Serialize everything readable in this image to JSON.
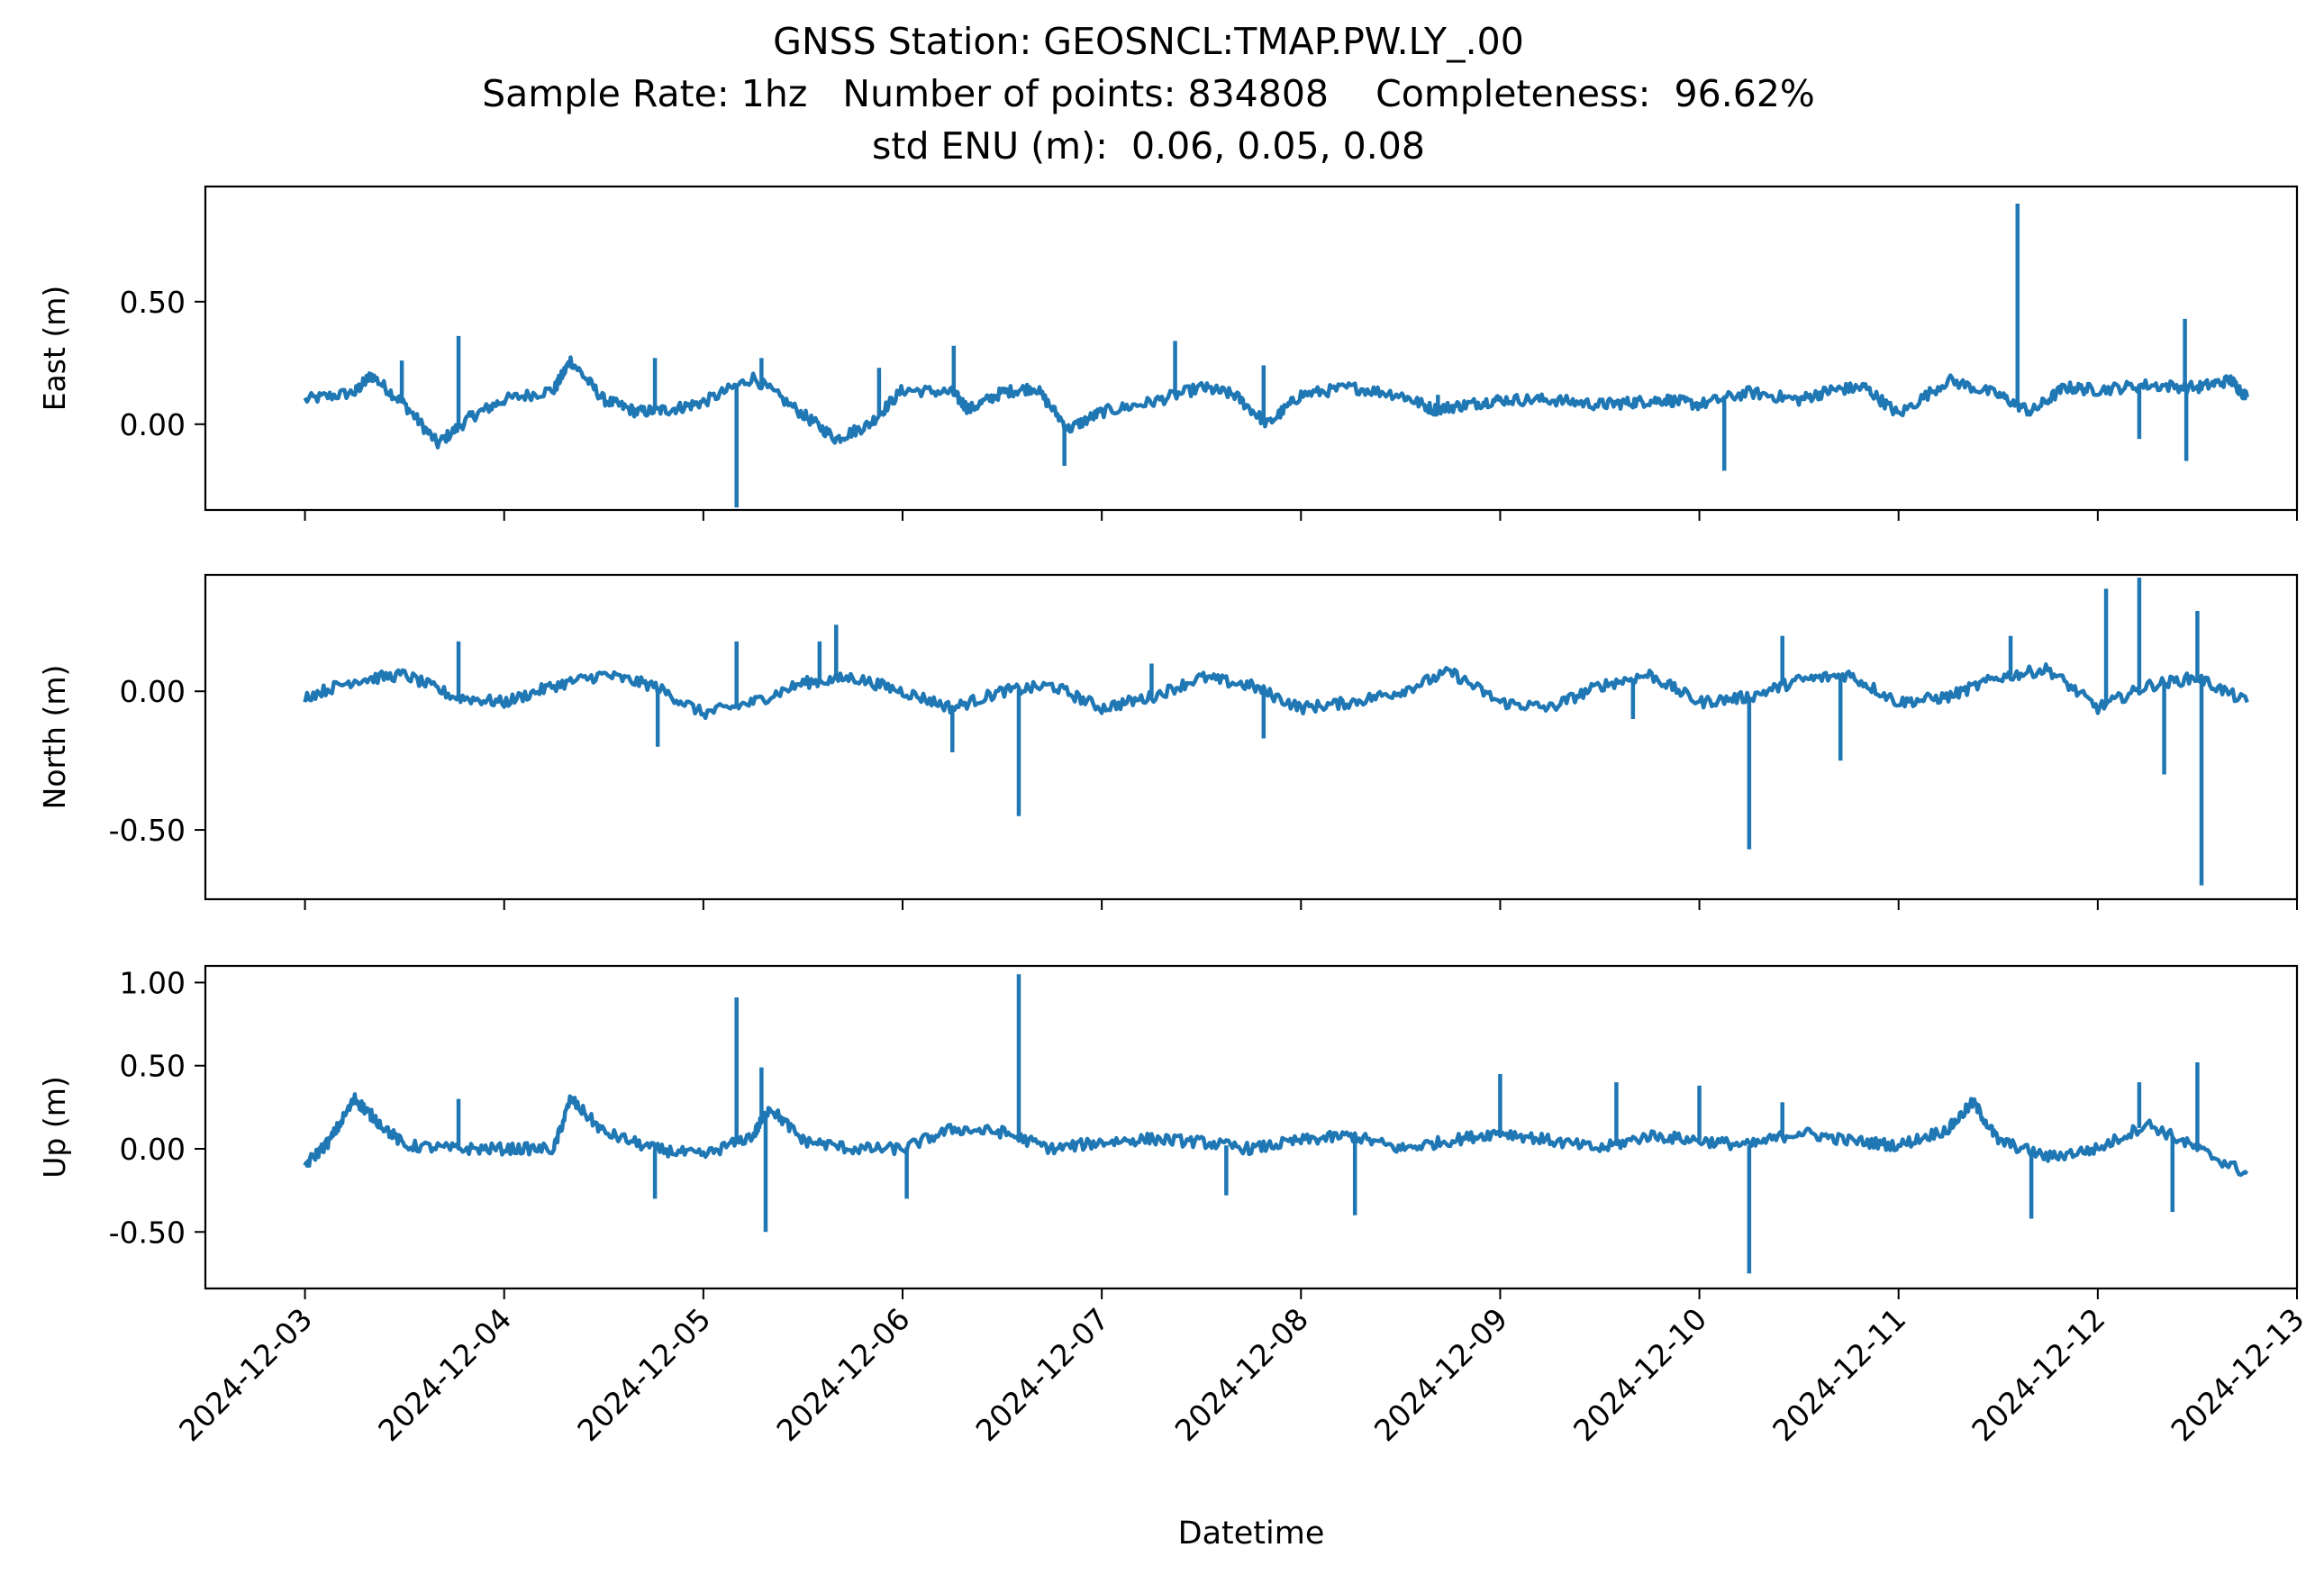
{
  "figure": {
    "title_lines": [
      "GNSS Station: GEOSNCL:TMAP.PW.LY_.00",
      "Sample Rate: 1hz   Number of points: 834808    Completeness:  96.62%",
      "std ENU (m):  0.06, 0.05, 0.08"
    ]
  },
  "chart_data": {
    "type": "line",
    "xlabel": "Datetime",
    "x_ticks": [
      "2024-12-03",
      "2024-12-04",
      "2024-12-05",
      "2024-12-06",
      "2024-12-07",
      "2024-12-08",
      "2024-12-09",
      "2024-12-10",
      "2024-12-11",
      "2024-12-12",
      "2024-12-13"
    ],
    "xlim": [
      "2024-12-02T12:00",
      "2024-12-13T00:00"
    ],
    "line_color": "#1f77b4",
    "grid": false,
    "legend": "none",
    "panels": [
      {
        "ylabel": "East (m)",
        "ylim": [
          -0.35,
          0.97
        ],
        "yticks": [
          0.0,
          0.5
        ],
        "ytick_labels": [
          "0.00",
          "0.50"
        ],
        "x": [
          "2024-12-03T00:00",
          "2024-12-03T06:00",
          "2024-12-03T08:00",
          "2024-12-03T12:00",
          "2024-12-03T16:00",
          "2024-12-03T20:00",
          "2024-12-04T00:00",
          "2024-12-04T06:00",
          "2024-12-04T08:00",
          "2024-12-04T12:00",
          "2024-12-04T16:00",
          "2024-12-04T20:00",
          "2024-12-05T00:00",
          "2024-12-05T06:00",
          "2024-12-05T12:00",
          "2024-12-05T16:00",
          "2024-12-05T20:00",
          "2024-12-06T00:00",
          "2024-12-06T06:00",
          "2024-12-06T08:00",
          "2024-12-06T12:00",
          "2024-12-06T16:00",
          "2024-12-06T20:00",
          "2024-12-07T00:00",
          "2024-12-07T06:00",
          "2024-12-07T12:00",
          "2024-12-07T16:00",
          "2024-12-07T20:00",
          "2024-12-08T00:00",
          "2024-12-08T06:00",
          "2024-12-08T12:00",
          "2024-12-08T16:00",
          "2024-12-08T20:00",
          "2024-12-09T00:00",
          "2024-12-09T06:00",
          "2024-12-09T12:00",
          "2024-12-09T16:00",
          "2024-12-09T20:00",
          "2024-12-10T00:00",
          "2024-12-10T06:00",
          "2024-12-10T12:00",
          "2024-12-10T16:00",
          "2024-12-10T20:00",
          "2024-12-11T00:00",
          "2024-12-11T06:00",
          "2024-12-11T12:00",
          "2024-12-11T16:00",
          "2024-12-11T20:00",
          "2024-12-12T00:00",
          "2024-12-12T06:00",
          "2024-12-12T12:00",
          "2024-12-12T16:00",
          "2024-12-12T18:00"
        ],
        "y": [
          0.1,
          0.13,
          0.2,
          0.08,
          -0.08,
          0.03,
          0.1,
          0.14,
          0.26,
          0.1,
          0.05,
          0.06,
          0.09,
          0.19,
          0.04,
          -0.06,
          0.0,
          0.14,
          0.13,
          0.06,
          0.13,
          0.15,
          -0.02,
          0.05,
          0.09,
          0.15,
          0.12,
          0.0,
          0.12,
          0.15,
          0.12,
          0.06,
          0.08,
          0.1,
          0.1,
          0.08,
          0.09,
          0.1,
          0.08,
          0.13,
          0.1,
          0.14,
          0.15,
          0.04,
          0.18,
          0.12,
          0.05,
          0.15,
          0.14,
          0.16,
          0.15,
          0.18,
          0.11
        ],
        "spikes": [
          [
            "2024-12-03T11:40",
            0.26
          ],
          [
            "2024-12-03T18:30",
            0.36
          ],
          [
            "2024-12-04T18:10",
            0.27
          ],
          [
            "2024-12-05T04:00",
            -0.34
          ],
          [
            "2024-12-05T07:00",
            0.27
          ],
          [
            "2024-12-05T21:10",
            0.23
          ],
          [
            "2024-12-06T06:10",
            0.32
          ],
          [
            "2024-12-06T19:30",
            -0.17
          ],
          [
            "2024-12-07T08:50",
            0.34
          ],
          [
            "2024-12-07T19:30",
            0.24
          ],
          [
            "2024-12-08T16:30",
            0.12
          ],
          [
            "2024-12-10T03:00",
            -0.19
          ],
          [
            "2024-12-11T14:20",
            0.9
          ],
          [
            "2024-12-12T10:30",
            0.43
          ],
          [
            "2024-12-12T10:40",
            -0.15
          ],
          [
            "2024-12-12T05:00",
            -0.06
          ]
        ]
      },
      {
        "ylabel": "North (m)",
        "ylim": [
          -0.75,
          0.42
        ],
        "yticks": [
          0.0,
          -0.5
        ],
        "ytick_labels": [
          "0.00",
          "-0.50"
        ],
        "x": [
          "2024-12-03T00:00",
          "2024-12-03T06:00",
          "2024-12-03T12:00",
          "2024-12-03T18:00",
          "2024-12-04T00:00",
          "2024-12-04T06:00",
          "2024-12-04T12:00",
          "2024-12-04T18:00",
          "2024-12-05T00:00",
          "2024-12-05T06:00",
          "2024-12-05T12:00",
          "2024-12-05T18:00",
          "2024-12-06T00:00",
          "2024-12-06T06:00",
          "2024-12-06T12:00",
          "2024-12-06T18:00",
          "2024-12-07T00:00",
          "2024-12-07T06:00",
          "2024-12-07T12:00",
          "2024-12-07T18:00",
          "2024-12-08T00:00",
          "2024-12-08T06:00",
          "2024-12-08T12:00",
          "2024-12-08T18:00",
          "2024-12-09T00:00",
          "2024-12-09T06:00",
          "2024-12-09T12:00",
          "2024-12-09T18:00",
          "2024-12-10T00:00",
          "2024-12-10T06:00",
          "2024-12-10T12:00",
          "2024-12-10T18:00",
          "2024-12-11T00:00",
          "2024-12-11T06:00",
          "2024-12-11T12:00",
          "2024-12-11T18:00",
          "2024-12-12T00:00",
          "2024-12-12T06:00",
          "2024-12-12T12:00",
          "2024-12-12T18:00"
        ],
        "y": [
          -0.02,
          0.04,
          0.06,
          -0.02,
          -0.04,
          0.02,
          0.06,
          0.02,
          -0.08,
          -0.04,
          0.03,
          0.05,
          0.0,
          -0.06,
          0.0,
          0.02,
          -0.06,
          -0.02,
          0.05,
          0.02,
          -0.06,
          -0.04,
          0.0,
          0.07,
          -0.04,
          -0.06,
          0.02,
          0.06,
          -0.04,
          -0.02,
          0.04,
          0.06,
          -0.04,
          -0.02,
          0.05,
          0.08,
          -0.06,
          0.02,
          0.05,
          -0.04
        ],
        "spikes": [
          [
            "2024-12-03T18:30",
            0.18
          ],
          [
            "2024-12-04T18:30",
            -0.2
          ],
          [
            "2024-12-05T04:00",
            0.18
          ],
          [
            "2024-12-05T14:00",
            0.18
          ],
          [
            "2024-12-05T16:00",
            0.24
          ],
          [
            "2024-12-06T06:00",
            -0.22
          ],
          [
            "2024-12-06T14:00",
            -0.45
          ],
          [
            "2024-12-07T06:00",
            0.1
          ],
          [
            "2024-12-07T19:30",
            -0.17
          ],
          [
            "2024-12-09T16:00",
            -0.1
          ],
          [
            "2024-12-10T06:00",
            -0.57
          ],
          [
            "2024-12-10T10:00",
            0.2
          ],
          [
            "2024-12-10T17:00",
            -0.25
          ],
          [
            "2024-12-11T13:30",
            0.2
          ],
          [
            "2024-12-12T01:00",
            0.37
          ],
          [
            "2024-12-12T05:00",
            0.41
          ],
          [
            "2024-12-12T08:00",
            -0.3
          ],
          [
            "2024-12-12T12:00",
            0.29
          ],
          [
            "2024-12-12T12:30",
            -0.7
          ]
        ]
      },
      {
        "ylabel": "Up (m)",
        "ylim": [
          -0.84,
          1.1
        ],
        "yticks": [
          1.0,
          0.5,
          0.0,
          -0.5
        ],
        "ytick_labels": [
          "1.00",
          "0.50",
          "0.00",
          "-0.50"
        ],
        "x": [
          "2024-12-03T00:00",
          "2024-12-03T03:00",
          "2024-12-03T06:00",
          "2024-12-03T08:00",
          "2024-12-03T12:00",
          "2024-12-03T18:00",
          "2024-12-04T00:00",
          "2024-12-04T06:00",
          "2024-12-04T08:00",
          "2024-12-04T12:00",
          "2024-12-04T18:00",
          "2024-12-05T00:00",
          "2024-12-05T06:00",
          "2024-12-05T08:00",
          "2024-12-05T12:00",
          "2024-12-05T18:00",
          "2024-12-06T00:00",
          "2024-12-06T06:00",
          "2024-12-06T12:00",
          "2024-12-06T18:00",
          "2024-12-07T00:00",
          "2024-12-07T06:00",
          "2024-12-07T12:00",
          "2024-12-07T18:00",
          "2024-12-08T00:00",
          "2024-12-08T06:00",
          "2024-12-08T12:00",
          "2024-12-08T18:00",
          "2024-12-09T00:00",
          "2024-12-09T06:00",
          "2024-12-09T12:00",
          "2024-12-09T18:00",
          "2024-12-10T00:00",
          "2024-12-10T06:00",
          "2024-12-10T12:00",
          "2024-12-10T18:00",
          "2024-12-11T00:00",
          "2024-12-11T06:00",
          "2024-12-11T09:00",
          "2024-12-11T12:00",
          "2024-12-11T18:00",
          "2024-12-12T00:00",
          "2024-12-12T06:00",
          "2024-12-12T12:00",
          "2024-12-12T18:00"
        ],
        "y": [
          -0.1,
          0.05,
          0.3,
          0.2,
          0.02,
          0.0,
          0.0,
          0.0,
          0.3,
          0.1,
          0.0,
          -0.04,
          0.08,
          0.25,
          0.05,
          0.0,
          0.0,
          0.12,
          0.1,
          0.0,
          0.04,
          0.06,
          0.04,
          0.0,
          0.05,
          0.08,
          0.0,
          0.05,
          0.1,
          0.05,
          0.0,
          0.08,
          0.05,
          0.02,
          0.1,
          0.05,
          0.02,
          0.12,
          0.28,
          0.05,
          -0.05,
          0.0,
          0.15,
          0.0,
          -0.15
        ],
        "spikes": [
          [
            "2024-12-03T18:30",
            0.3
          ],
          [
            "2024-12-04T18:10",
            -0.3
          ],
          [
            "2024-12-05T04:00",
            0.91
          ],
          [
            "2024-12-05T07:00",
            0.49
          ],
          [
            "2024-12-05T07:30",
            -0.5
          ],
          [
            "2024-12-06T00:30",
            -0.3
          ],
          [
            "2024-12-06T14:00",
            1.05
          ],
          [
            "2024-12-07T15:00",
            -0.28
          ],
          [
            "2024-12-08T06:30",
            -0.4
          ],
          [
            "2024-12-09T00:00",
            0.45
          ],
          [
            "2024-12-09T14:00",
            0.4
          ],
          [
            "2024-12-10T00:00",
            0.38
          ],
          [
            "2024-12-10T06:00",
            -0.75
          ],
          [
            "2024-12-10T10:00",
            0.28
          ],
          [
            "2024-12-11T16:00",
            -0.42
          ],
          [
            "2024-12-12T05:00",
            0.4
          ],
          [
            "2024-12-12T12:00",
            0.52
          ],
          [
            "2024-12-12T09:00",
            -0.38
          ]
        ]
      }
    ]
  }
}
